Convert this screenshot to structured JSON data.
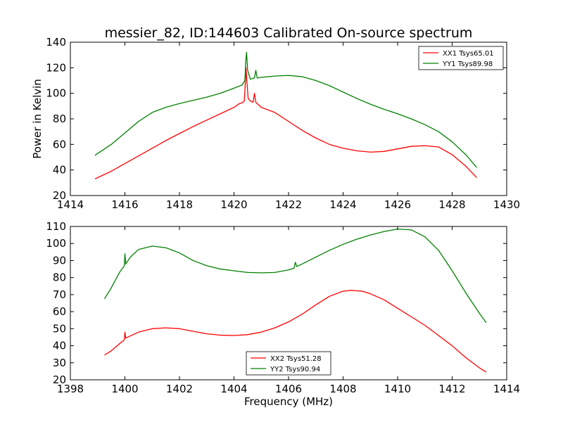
{
  "chart_data": [
    {
      "type": "line",
      "title": "messier_82, ID:144603 Calibrated On-source spectrum",
      "xlabel": "",
      "ylabel": "Power in Kelvin",
      "xlim": [
        1414,
        1430
      ],
      "ylim": [
        20,
        140
      ],
      "xticks": [
        "1414",
        "1416",
        "1418",
        "1420",
        "1422",
        "1424",
        "1426",
        "1428",
        "1430"
      ],
      "yticks": [
        "20",
        "40",
        "60",
        "80",
        "100",
        "120",
        "140"
      ],
      "legend_position": "top-right",
      "series": [
        {
          "name": "XX1 Tsys65.01",
          "color": "#ff0000",
          "points": [
            [
              1414.9,
              33
            ],
            [
              1415.5,
              39
            ],
            [
              1416,
              45
            ],
            [
              1416.5,
              51
            ],
            [
              1417,
              57
            ],
            [
              1417.5,
              63
            ],
            [
              1418,
              68.5
            ],
            [
              1418.5,
              74
            ],
            [
              1419,
              79
            ],
            [
              1419.5,
              84
            ],
            [
              1420,
              89
            ],
            [
              1420.2,
              92
            ],
            [
              1420.3,
              92.5
            ],
            [
              1420.38,
              94
            ],
            [
              1420.42,
              110
            ],
            [
              1420.44,
              120
            ],
            [
              1420.47,
              110
            ],
            [
              1420.52,
              96
            ],
            [
              1420.6,
              94
            ],
            [
              1420.7,
              93
            ],
            [
              1420.75,
              100
            ],
            [
              1420.8,
              93
            ],
            [
              1421,
              89
            ],
            [
              1421.5,
              85
            ],
            [
              1422,
              78
            ],
            [
              1422.5,
              71
            ],
            [
              1423,
              65
            ],
            [
              1423.5,
              60
            ],
            [
              1424,
              57
            ],
            [
              1424.5,
              55
            ],
            [
              1425,
              54
            ],
            [
              1425.5,
              54.5
            ],
            [
              1426,
              56.5
            ],
            [
              1426.5,
              58.5
            ],
            [
              1427,
              59
            ],
            [
              1427.5,
              58
            ],
            [
              1428,
              52
            ],
            [
              1428.5,
              43
            ],
            [
              1428.9,
              34
            ]
          ]
        },
        {
          "name": "YY1 Tsys89.98",
          "color": "#008000",
          "points": [
            [
              1414.9,
              51.5
            ],
            [
              1415.5,
              60
            ],
            [
              1416,
              69
            ],
            [
              1416.5,
              78
            ],
            [
              1417,
              85
            ],
            [
              1417.5,
              89
            ],
            [
              1418,
              92
            ],
            [
              1418.5,
              94.5
            ],
            [
              1419,
              97
            ],
            [
              1419.5,
              100
            ],
            [
              1420,
              104
            ],
            [
              1420.3,
              106.5
            ],
            [
              1420.4,
              110
            ],
            [
              1420.43,
              125
            ],
            [
              1420.46,
              132
            ],
            [
              1420.5,
              118
            ],
            [
              1420.6,
              111
            ],
            [
              1420.75,
              112
            ],
            [
              1420.8,
              118
            ],
            [
              1420.85,
              112
            ],
            [
              1421,
              112.5
            ],
            [
              1421.5,
              113.5
            ],
            [
              1422,
              114
            ],
            [
              1422.5,
              113
            ],
            [
              1423,
              110
            ],
            [
              1423.5,
              106
            ],
            [
              1424,
              101
            ],
            [
              1424.5,
              96
            ],
            [
              1425,
              91.5
            ],
            [
              1425.5,
              87.5
            ],
            [
              1426,
              84
            ],
            [
              1426.5,
              80
            ],
            [
              1427,
              75.5
            ],
            [
              1427.5,
              70
            ],
            [
              1428,
              62
            ],
            [
              1428.5,
              52
            ],
            [
              1428.9,
              42
            ]
          ]
        }
      ]
    },
    {
      "type": "line",
      "title": "",
      "xlabel": "Frequency (MHz)",
      "ylabel": "",
      "xlim": [
        1398,
        1414
      ],
      "ylim": [
        20,
        110
      ],
      "xticks": [
        "1398",
        "1400",
        "1402",
        "1404",
        "1406",
        "1408",
        "1410",
        "1412",
        "1414"
      ],
      "yticks": [
        "20",
        "30",
        "40",
        "50",
        "60",
        "70",
        "80",
        "90",
        "100",
        "110"
      ],
      "legend_position": "lower-center",
      "series": [
        {
          "name": "XX2 Tsys51.28",
          "color": "#ff0000",
          "points": [
            [
              1399.25,
              34.5
            ],
            [
              1399.5,
              37
            ],
            [
              1399.9,
              42.5
            ],
            [
              1399.98,
              43.5
            ],
            [
              1400,
              48
            ],
            [
              1400.03,
              44.5
            ],
            [
              1400.5,
              48
            ],
            [
              1401,
              50
            ],
            [
              1401.5,
              50.5
            ],
            [
              1402,
              50
            ],
            [
              1402.5,
              48.5
            ],
            [
              1403,
              47
            ],
            [
              1403.5,
              46.2
            ],
            [
              1404,
              46
            ],
            [
              1404.5,
              46.5
            ],
            [
              1405,
              48
            ],
            [
              1405.5,
              50.5
            ],
            [
              1406,
              54
            ],
            [
              1406.5,
              58.5
            ],
            [
              1407,
              64
            ],
            [
              1407.5,
              69
            ],
            [
              1408,
              72
            ],
            [
              1408.3,
              72.5
            ],
            [
              1408.7,
              72
            ],
            [
              1409,
              70.5
            ],
            [
              1409.5,
              67
            ],
            [
              1410,
              62
            ],
            [
              1410.5,
              57
            ],
            [
              1411,
              52
            ],
            [
              1411.5,
              46
            ],
            [
              1412,
              40
            ],
            [
              1412.5,
              33
            ],
            [
              1413,
              27
            ],
            [
              1413.25,
              24.5
            ]
          ]
        },
        {
          "name": "YY2 Tsys90.94",
          "color": "#008000",
          "points": [
            [
              1399.25,
              67.5
            ],
            [
              1399.5,
              74
            ],
            [
              1399.8,
              83
            ],
            [
              1399.98,
              87
            ],
            [
              1400,
              94
            ],
            [
              1400.03,
              88
            ],
            [
              1400.2,
              92
            ],
            [
              1400.5,
              96.5
            ],
            [
              1401,
              98.5
            ],
            [
              1401.5,
              97.5
            ],
            [
              1402,
              94.5
            ],
            [
              1402.5,
              90
            ],
            [
              1403,
              87
            ],
            [
              1403.5,
              85
            ],
            [
              1404,
              84
            ],
            [
              1404.5,
              83
            ],
            [
              1405,
              82.8
            ],
            [
              1405.5,
              83
            ],
            [
              1406,
              84.5
            ],
            [
              1406.2,
              85.5
            ],
            [
              1406.25,
              89
            ],
            [
              1406.3,
              86.5
            ],
            [
              1406.5,
              88
            ],
            [
              1407,
              92
            ],
            [
              1407.5,
              96
            ],
            [
              1408,
              99.5
            ],
            [
              1408.5,
              102.5
            ],
            [
              1409,
              105
            ],
            [
              1409.5,
              107
            ],
            [
              1410,
              108.5
            ],
            [
              1410.5,
              108
            ],
            [
              1411,
              104
            ],
            [
              1411.5,
              96
            ],
            [
              1412,
              84
            ],
            [
              1412.5,
              71
            ],
            [
              1413,
              59
            ],
            [
              1413.25,
              53.5
            ]
          ]
        }
      ]
    }
  ]
}
